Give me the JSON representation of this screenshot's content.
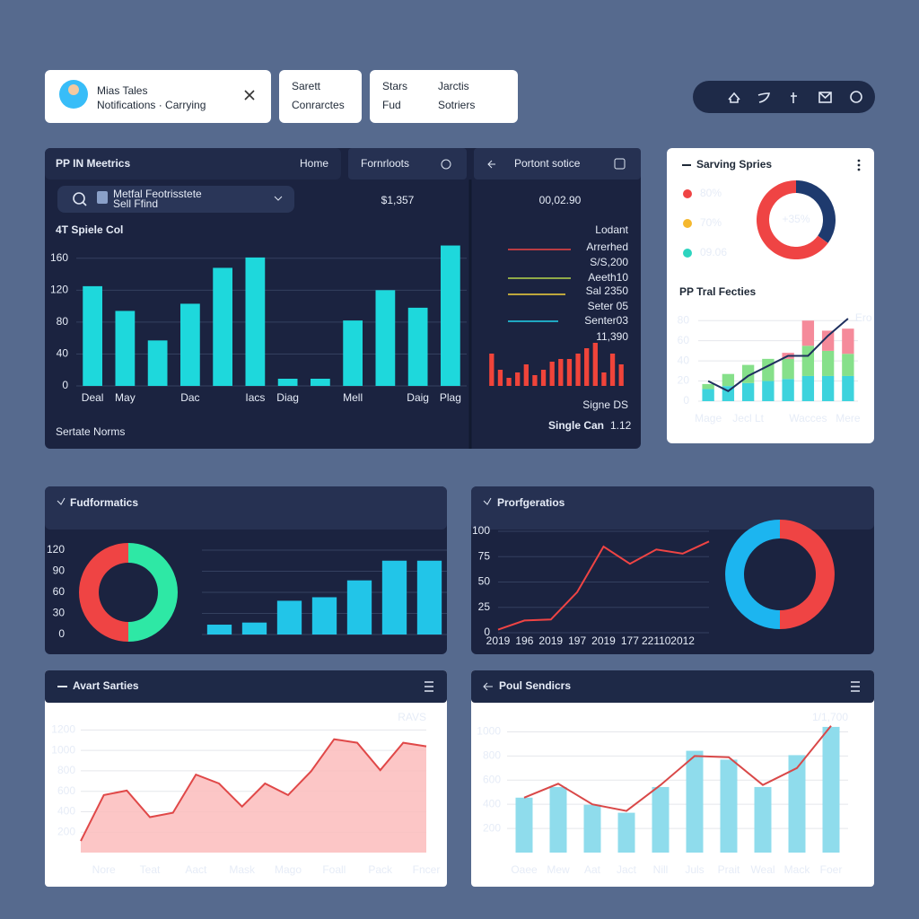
{
  "header": {
    "profile_name": "Mias Tales",
    "profile_subtitle": "Notifications · Carrying",
    "tabs": [
      {
        "top": "Sarett",
        "bottom": "Conrarctes"
      },
      {
        "top": "Stars",
        "bottom": "Fud"
      },
      {
        "top": "Jarctis",
        "bottom": "Sotriers"
      }
    ]
  },
  "panels": {
    "metrics": {
      "title": "PP IN Meetrics",
      "nav": [
        "Home",
        "Fornrloots"
      ],
      "search": "Metfal Feotrisstete",
      "search_sub": "Sell Ffind",
      "kpi": "$1,357",
      "footer": "Sertate Norms"
    },
    "portfolio": {
      "title": "Portont sotice",
      "kpi": "00,02.90",
      "note": "Lodant",
      "legend": [
        "Arrerhed",
        "S/S,200",
        "Aeeth10",
        "Sal 2350",
        "Seter 05",
        "Senter03"
      ],
      "total": "11,390",
      "footer_note": "Signe DS",
      "footer": "Single Can",
      "footer_value": "1.12"
    }
  },
  "chart_data": [
    {
      "type": "bar",
      "title": "4T Spiele Col",
      "categories": [
        "Deal",
        "May",
        null,
        "Dac",
        null,
        "Iacs",
        "Diag",
        null,
        "Mell",
        null,
        "Daig",
        "Plag"
      ],
      "values": [
        125,
        94,
        57,
        103,
        148,
        161,
        9,
        9,
        82,
        120,
        98,
        176
      ],
      "color": "#1ed8dc",
      "ylim": [
        0,
        180
      ],
      "yticks": [
        0,
        40,
        80,
        120,
        160
      ],
      "grid": true
    },
    {
      "type": "bar",
      "values": [
        6,
        3,
        1.5,
        2.5,
        4,
        2,
        3,
        4.5,
        5,
        5,
        6,
        7,
        8,
        2.5,
        6,
        4
      ],
      "color": "#f0443a",
      "ylim": [
        0,
        10
      ]
    },
    {
      "type": "pie",
      "title": "Sarving Spries",
      "values": [
        35,
        65
      ],
      "colors": [
        "#1e3a6e",
        "#ef4444"
      ],
      "center_label": "+35%",
      "legend": [
        {
          "label": "80%",
          "color": "#ef4444"
        },
        {
          "label": "70%",
          "color": "#f5b82e"
        },
        {
          "label": "09.06",
          "color": "#2dd4bf"
        }
      ]
    },
    {
      "type": "bar",
      "title": "PP Tral Fecties",
      "stacked": true,
      "categories": [
        "Mage",
        null,
        "Jecl Lt",
        null,
        null,
        "Wacces",
        null,
        "Mere"
      ],
      "series": [
        {
          "color": "#3dd3dd",
          "values": [
            12,
            15,
            18,
            20,
            22,
            25,
            25,
            25
          ]
        },
        {
          "color": "#86e08a",
          "values": [
            5,
            12,
            18,
            22,
            20,
            30,
            25,
            22
          ]
        },
        {
          "color": "#f58a9a",
          "values": [
            0,
            0,
            0,
            0,
            6,
            25,
            20,
            25
          ]
        },
        {
          "name": "Ero",
          "type": "line",
          "color": "#1e2f5e",
          "values": [
            20,
            10,
            25,
            35,
            45,
            45,
            65,
            82
          ]
        }
      ],
      "ylim": [
        0,
        90
      ],
      "yticks": [
        0,
        20,
        40,
        60,
        80
      ],
      "grid": true
    },
    {
      "type": "pie",
      "title": "Fudformatics",
      "values": [
        50,
        50
      ],
      "colors": [
        "#2ee8a5",
        "#ef4444"
      ]
    },
    {
      "type": "bar",
      "values": [
        14,
        17,
        48,
        53,
        77,
        105,
        105
      ],
      "color": "#22c5e8",
      "ylim": [
        0,
        120
      ],
      "yticks": [
        0,
        30,
        60,
        90,
        120
      ],
      "grid": true
    },
    {
      "type": "line",
      "title": "Prorfgeratios",
      "categories": [
        "2019",
        "196",
        "2019",
        "197",
        "2019",
        "177",
        "22110",
        "2012",
        null
      ],
      "values": [
        3,
        12,
        13,
        40,
        85,
        68,
        82,
        78,
        90
      ],
      "color": "#ef4444",
      "ylim": [
        0,
        100
      ],
      "yticks": [
        0,
        25,
        50,
        75,
        100
      ],
      "grid": true
    },
    {
      "type": "pie",
      "values": [
        50,
        50
      ],
      "colors": [
        "#ef4444",
        "#1cb5f0"
      ]
    },
    {
      "type": "area",
      "title": "Avart Sarties",
      "annotation": "RAVS",
      "categories": [
        null,
        "Nore",
        null,
        "Teat",
        null,
        "Aact",
        null,
        "Mask",
        null,
        "Mago",
        null,
        "Foall",
        null,
        "Pack",
        null,
        "Fncer"
      ],
      "values": [
        113,
        563,
        607,
        347,
        390,
        763,
        676,
        451,
        676,
        563,
        797,
        1109,
        1075,
        806,
        1075,
        1040
      ],
      "color": "#e04848",
      "fill": "#fbbcbc",
      "ylim": [
        0,
        1300
      ],
      "yticks": [
        200,
        400,
        600,
        800,
        1000,
        1200
      ],
      "grid": true
    },
    {
      "type": "bar",
      "title": "Poul Sendicrs",
      "annotation": "1/1,700",
      "categories": [
        "Oaee",
        "Mew",
        "Aat",
        "Jact",
        "Nill",
        "Juls",
        "Prait",
        "Weal",
        "Mack",
        "Foer"
      ],
      "series": [
        {
          "color": "#8fdcec",
          "values": [
            455,
            543,
            396,
            330,
            543,
            843,
            770,
            543,
            807,
            1041
          ]
        },
        {
          "type": "line",
          "color": "#d94848",
          "values": [
            455,
            570,
            400,
            345,
            560,
            800,
            790,
            560,
            700,
            1050
          ]
        }
      ],
      "ylim": [
        0,
        1100
      ],
      "yticks": [
        200,
        400,
        600,
        800,
        1000
      ],
      "grid": true
    }
  ]
}
